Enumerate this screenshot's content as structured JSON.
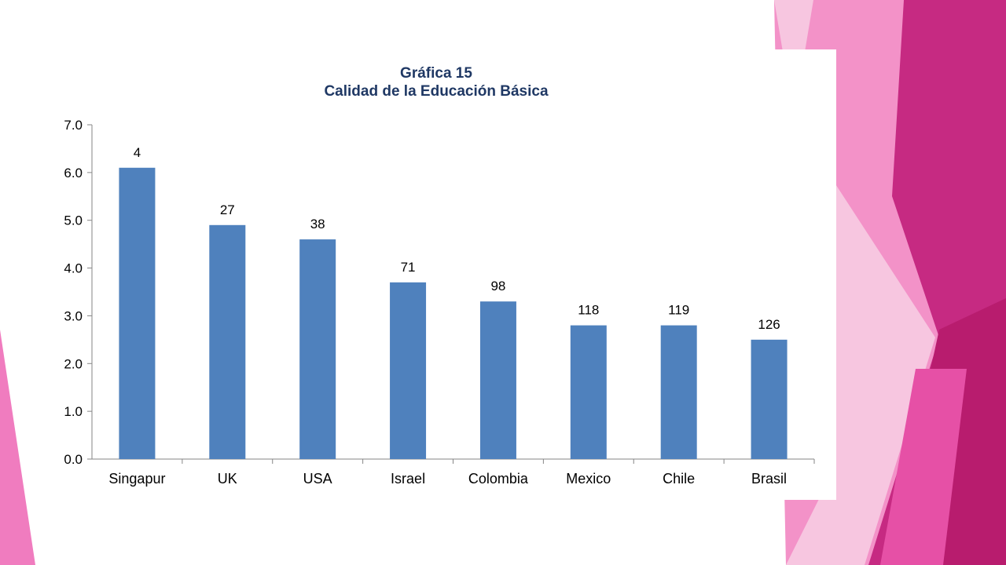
{
  "chart_data": {
    "type": "bar",
    "title": "Gráfica 15",
    "subtitle": "Calidad de la Educación Básica",
    "xlabel": "",
    "ylabel": "",
    "categories": [
      "Singapur",
      "UK",
      "USA",
      "Israel",
      "Colombia",
      "Mexico",
      "Chile",
      "Brasil"
    ],
    "values": [
      6.1,
      4.9,
      4.6,
      3.7,
      3.3,
      2.8,
      2.8,
      2.5
    ],
    "data_labels": [
      "4",
      "27",
      "38",
      "71",
      "98",
      "118",
      "119",
      "126"
    ],
    "ylim": [
      0,
      7
    ],
    "yticks": [
      "0.0",
      "1.0",
      "2.0",
      "3.0",
      "4.0",
      "5.0",
      "6.0",
      "7.0"
    ],
    "grid": false,
    "legend": "none",
    "bar_color": "#4f81bd"
  },
  "colors": {
    "title": "#1f3864",
    "decor_magenta": "#c0237a",
    "decor_pink": "#f392c8",
    "decor_light_pink": "#f7c6e0"
  }
}
